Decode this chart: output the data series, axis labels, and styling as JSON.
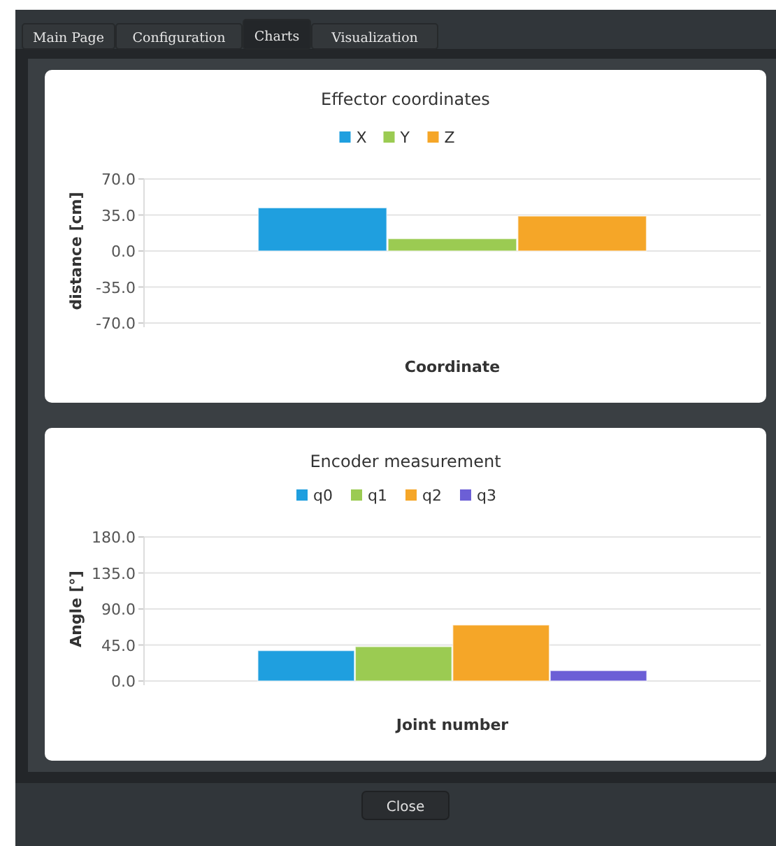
{
  "chart_data": [
    {
      "type": "bar",
      "title": "Effector coordinates",
      "xlabel": "Coordinate",
      "ylabel": "distance [cm]",
      "categories": [
        null
      ],
      "series": [
        {
          "name": "X",
          "color": "#1f9fdf",
          "values": [
            42
          ]
        },
        {
          "name": "Y",
          "color": "#9bcb52",
          "values": [
            12
          ]
        },
        {
          "name": "Z",
          "color": "#f5a628",
          "values": [
            34
          ]
        }
      ],
      "ylim": [
        -70,
        70
      ],
      "yticks": [
        {
          "value": 70,
          "label": "70.0"
        },
        {
          "value": 35,
          "label": "35.0"
        },
        {
          "value": 0,
          "label": "0.0"
        },
        {
          "value": -35,
          "label": "-35.0"
        },
        {
          "value": -70,
          "label": "-70.0"
        }
      ],
      "grid": "y",
      "legend": "top"
    },
    {
      "type": "bar",
      "title": "Encoder measurement",
      "xlabel": "Joint number",
      "ylabel": "Angle [°]",
      "categories": [
        null
      ],
      "series": [
        {
          "name": "q0",
          "color": "#1f9fdf",
          "values": [
            38
          ]
        },
        {
          "name": "q1",
          "color": "#9bcb52",
          "values": [
            43
          ]
        },
        {
          "name": "q2",
          "color": "#f5a628",
          "values": [
            70
          ]
        },
        {
          "name": "q3",
          "color": "#6c5fd6",
          "values": [
            13
          ]
        }
      ],
      "ylim": [
        0,
        180
      ],
      "yticks": [
        {
          "value": 180,
          "label": "180.0"
        },
        {
          "value": 135,
          "label": "135.0"
        },
        {
          "value": 90,
          "label": "90.0"
        },
        {
          "value": 45,
          "label": "45.0"
        },
        {
          "value": 0,
          "label": "0.0"
        }
      ],
      "grid": "y",
      "legend": "top"
    },
    {
      "type": "other",
      "annotations": [
        "Main Page",
        "Configuration",
        "Charts",
        "Visualization",
        "Close"
      ]
    }
  ]
}
